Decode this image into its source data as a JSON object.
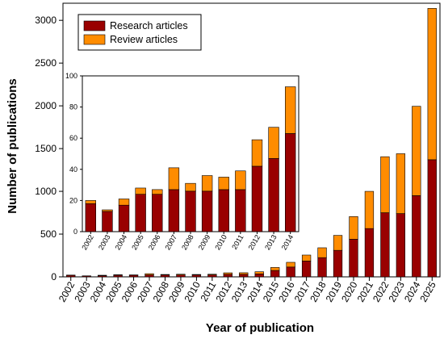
{
  "chart_data": [
    {
      "type": "bar",
      "stacked": true,
      "categories": [
        "2002",
        "2003",
        "2004",
        "2005",
        "2006",
        "2007",
        "2008",
        "2009",
        "2010",
        "2011",
        "2012",
        "2013",
        "2014",
        "2015",
        "2016",
        "2017",
        "2018",
        "2019",
        "2020",
        "2021",
        "2022",
        "2023",
        "2024",
        "2025"
      ],
      "series": [
        {
          "name": "Research articles",
          "color": "#990000",
          "values": [
            18,
            11,
            14,
            20,
            20,
            23,
            22,
            22,
            23,
            23,
            30,
            30,
            35,
            75,
            115,
            185,
            225,
            310,
            440,
            565,
            750,
            740,
            950,
            1370
          ]
        },
        {
          "name": "Review articles",
          "color": "#FF8C00",
          "values": [
            3,
            1,
            5,
            5,
            3,
            14,
            6,
            9,
            5,
            8,
            17,
            18,
            25,
            35,
            55,
            70,
            115,
            175,
            265,
            435,
            655,
            700,
            1045,
            1770
          ]
        }
      ],
      "title": "",
      "xlabel": "Year of publication",
      "ylabel": "Number of publications",
      "ylim": [
        0,
        3200
      ],
      "yticks": [
        0,
        500,
        1000,
        1500,
        2000,
        2500,
        3000
      ],
      "legend": "top-left",
      "grid": false
    },
    {
      "type": "bar",
      "stacked": true,
      "inset": true,
      "categories": [
        "2002",
        "2003",
        "2004",
        "2005",
        "2006",
        "2007",
        "2008",
        "2009",
        "2010",
        "2011",
        "2012",
        "2013",
        "2014"
      ],
      "series": [
        {
          "name": "Research articles",
          "color": "#990000",
          "values": [
            18,
            13,
            17,
            24,
            24,
            27,
            26,
            26,
            27,
            27,
            42,
            47,
            63
          ]
        },
        {
          "name": "Review articles",
          "color": "#FF8C00",
          "values": [
            2,
            1,
            4,
            4,
            3,
            14,
            5,
            10,
            8,
            12,
            17,
            20,
            30
          ]
        }
      ],
      "ylim": [
        0,
        100
      ],
      "yticks": [
        0,
        20,
        40,
        60,
        80,
        100
      ],
      "grid": false
    }
  ]
}
